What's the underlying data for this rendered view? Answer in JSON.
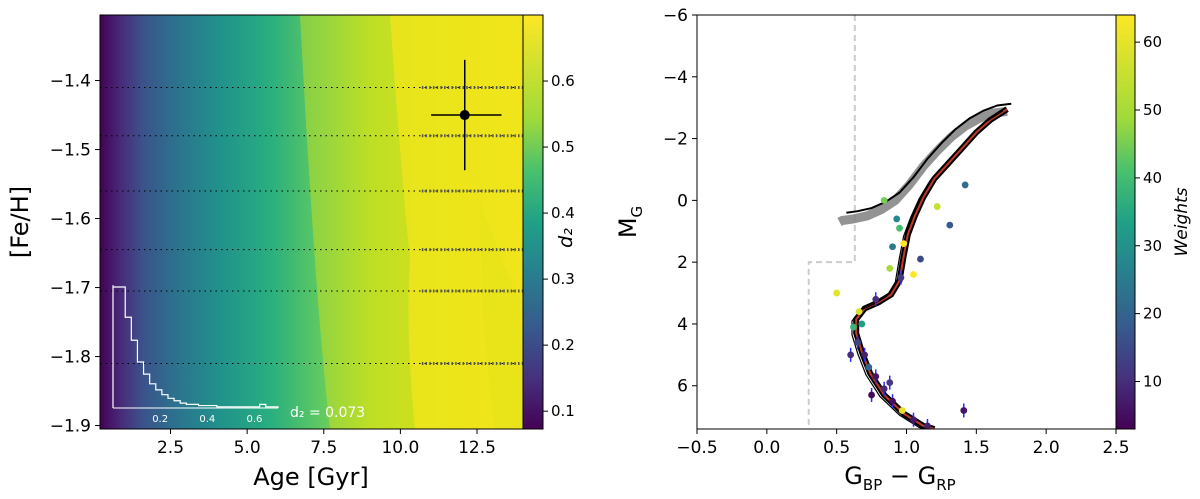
{
  "chart_data": [
    {
      "type": "heatmap",
      "title": "",
      "xlabel": "Age [Gyr]",
      "ylabel": "[Fe/H]",
      "xlim": [
        0.2,
        14.0
      ],
      "ylim": [
        -1.905,
        -1.305
      ],
      "xticks": [
        "2.5",
        "5.0",
        "7.5",
        "10.0",
        "12.5"
      ],
      "xtick_values": [
        2.5,
        5.0,
        7.5,
        10.0,
        12.5
      ],
      "yticks": [
        "−1.4",
        "−1.5",
        "−1.6",
        "−1.7",
        "−1.8",
        "−1.9"
      ],
      "ytick_values": [
        -1.4,
        -1.5,
        -1.6,
        -1.7,
        -1.8,
        -1.9
      ],
      "colorbar": {
        "label": "d₂",
        "range": [
          0.073,
          0.7
        ],
        "ticks": [
          "0.1",
          "0.2",
          "0.3",
          "0.4",
          "0.5",
          "0.6"
        ],
        "tick_values": [
          0.1,
          0.2,
          0.3,
          0.4,
          0.5,
          0.6
        ]
      },
      "best_fit": {
        "age": 12.1,
        "feh": -1.45,
        "age_err": [
          1.1,
          1.2
        ],
        "feh_err": [
          0.08,
          0.08
        ]
      },
      "annotation": "d₂ = 0.073",
      "grid_metallicities": [
        -1.41,
        -1.48,
        -1.56,
        -1.645,
        -1.705,
        -1.81
      ],
      "inset": {
        "type": "histogram",
        "xticks": [
          "0.2",
          "0.4",
          "0.6"
        ],
        "bin_counts": [
          100,
          100,
          75,
          56,
          38,
          28,
          20,
          15,
          11,
          8,
          6,
          4,
          3,
          3,
          2,
          2,
          2,
          1,
          1,
          1,
          1,
          1,
          1,
          1,
          3,
          1,
          1
        ],
        "xrange": [
          0.0,
          0.7
        ]
      }
    },
    {
      "type": "scatter",
      "title": "",
      "xlabel": "G₂ₚ − Gᵣₚ",
      "xlabel_main": "G",
      "xlabel_sub1": "BP",
      "xlabel_minus": " − G",
      "xlabel_sub2": "RP",
      "ylabel_main": "M",
      "ylabel_sub": "G",
      "xlim": [
        -0.5,
        2.5
      ],
      "ylim": [
        7.4,
        -6.0
      ],
      "xticks": [
        "−0.5",
        "0.0",
        "0.5",
        "1.0",
        "1.5",
        "2.0",
        "2.5"
      ],
      "xtick_values": [
        -0.5,
        0.0,
        0.5,
        1.0,
        1.5,
        2.0,
        2.5
      ],
      "yticks": [
        "−6",
        "−4",
        "−2",
        "0",
        "2",
        "4",
        "6"
      ],
      "ytick_values": [
        -6,
        -4,
        -2,
        0,
        2,
        4,
        6
      ],
      "colorbar": {
        "label": "Weights",
        "range": [
          3,
          64
        ],
        "ticks": [
          "10",
          "20",
          "30",
          "40",
          "50",
          "60"
        ],
        "tick_values": [
          10,
          20,
          30,
          40,
          50,
          60
        ]
      },
      "selection_boundary": [
        [
          0.63,
          -6.0
        ],
        [
          0.63,
          2.0
        ],
        [
          0.3,
          2.0
        ],
        [
          0.3,
          7.4
        ]
      ],
      "isochrone": [
        [
          0.52,
          0.45
        ],
        [
          0.6,
          0.4
        ],
        [
          0.7,
          0.3
        ],
        [
          0.8,
          0.1
        ],
        [
          0.9,
          -0.2
        ],
        [
          1.0,
          -0.7
        ],
        [
          1.1,
          -1.3
        ],
        [
          1.2,
          -1.8
        ],
        [
          1.3,
          -2.25
        ],
        [
          1.4,
          -2.6
        ],
        [
          1.5,
          -2.85
        ],
        [
          1.6,
          -3.02
        ],
        [
          1.7,
          -3.08
        ]
      ],
      "rgb": [
        [
          1.72,
          -2.95
        ],
        [
          1.6,
          -2.6
        ],
        [
          1.5,
          -2.2
        ],
        [
          1.4,
          -1.7
        ],
        [
          1.3,
          -1.2
        ],
        [
          1.2,
          -0.7
        ],
        [
          1.12,
          -0.1
        ],
        [
          1.06,
          0.5
        ],
        [
          1.01,
          1.1
        ],
        [
          0.98,
          1.8
        ],
        [
          0.95,
          2.6
        ],
        [
          0.89,
          3.05
        ],
        [
          0.8,
          3.3
        ],
        [
          0.7,
          3.5
        ],
        [
          0.64,
          3.85
        ],
        [
          0.64,
          4.3
        ],
        [
          0.68,
          4.9
        ],
        [
          0.74,
          5.6
        ],
        [
          0.84,
          6.3
        ],
        [
          0.98,
          6.9
        ],
        [
          1.12,
          7.3
        ],
        [
          1.2,
          7.4
        ]
      ],
      "stars": [
        {
          "x": 1.42,
          "y": -0.5,
          "w": 22
        },
        {
          "x": 1.31,
          "y": 0.8,
          "w": 18
        },
        {
          "x": 1.22,
          "y": 0.2,
          "w": 55
        },
        {
          "x": 1.1,
          "y": 1.9,
          "w": 15
        },
        {
          "x": 0.98,
          "y": 1.4,
          "w": 64
        },
        {
          "x": 0.95,
          "y": 0.9,
          "w": 40
        },
        {
          "x": 0.9,
          "y": 1.5,
          "w": 25
        },
        {
          "x": 0.84,
          "y": 0.0,
          "w": 45
        },
        {
          "x": 1.05,
          "y": 2.4,
          "w": 64
        },
        {
          "x": 0.96,
          "y": 2.5,
          "w": 12
        },
        {
          "x": 0.88,
          "y": 2.2,
          "w": 50
        },
        {
          "x": 0.5,
          "y": 3.0,
          "w": 60
        },
        {
          "x": 0.78,
          "y": 3.2,
          "w": 10
        },
        {
          "x": 0.66,
          "y": 3.6,
          "w": 58
        },
        {
          "x": 0.62,
          "y": 4.1,
          "w": 38
        },
        {
          "x": 0.65,
          "y": 4.6,
          "w": 14
        },
        {
          "x": 0.7,
          "y": 5.0,
          "w": 8
        },
        {
          "x": 0.73,
          "y": 5.4,
          "w": 20
        },
        {
          "x": 0.78,
          "y": 5.7,
          "w": 6
        },
        {
          "x": 0.84,
          "y": 6.1,
          "w": 9
        },
        {
          "x": 0.9,
          "y": 6.5,
          "w": 5
        },
        {
          "x": 0.97,
          "y": 6.8,
          "w": 60
        },
        {
          "x": 1.05,
          "y": 7.1,
          "w": 7
        },
        {
          "x": 1.41,
          "y": 6.8,
          "w": 6
        },
        {
          "x": 0.6,
          "y": 5.0,
          "w": 10
        },
        {
          "x": 0.75,
          "y": 6.3,
          "w": 4
        },
        {
          "x": 0.88,
          "y": 5.9,
          "w": 12
        },
        {
          "x": 1.15,
          "y": 7.3,
          "w": 8
        },
        {
          "x": 0.68,
          "y": 4.0,
          "w": 33
        },
        {
          "x": 0.93,
          "y": 0.6,
          "w": 28
        }
      ]
    }
  ]
}
